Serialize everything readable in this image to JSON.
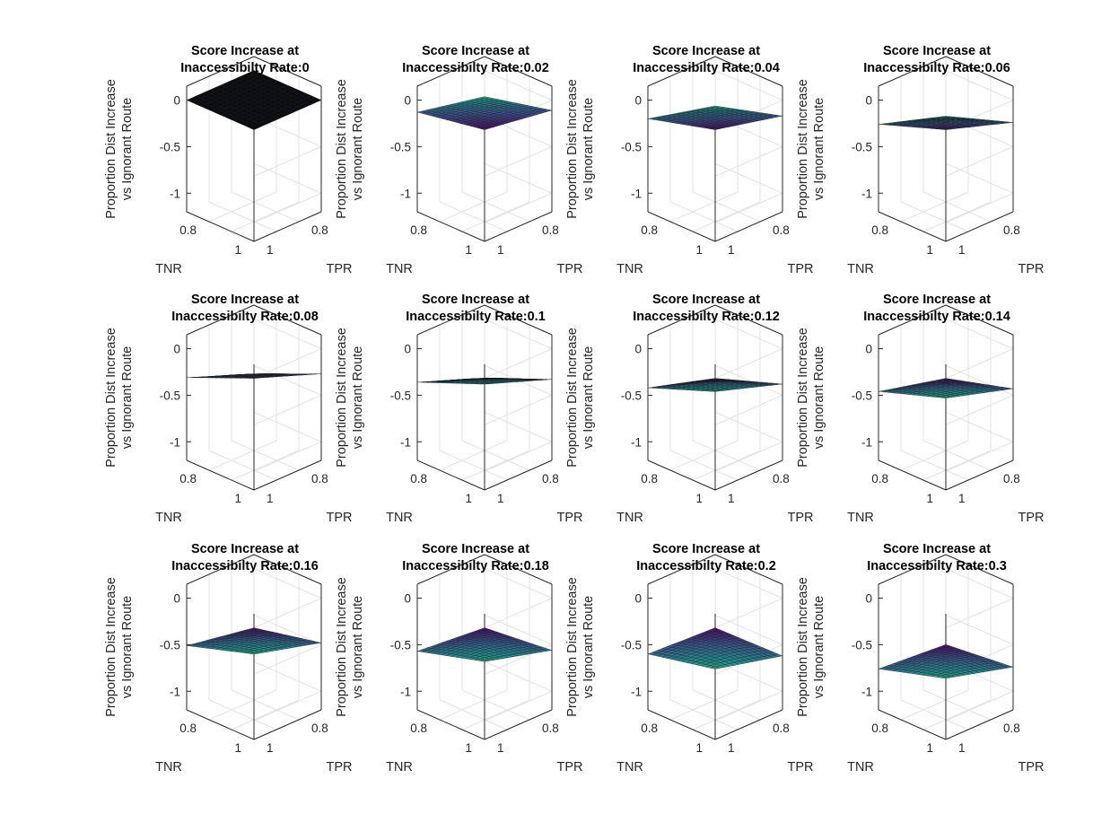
{
  "chart_data": {
    "type": "surface",
    "layout": "3x4 grid of 3D surface subplots",
    "xlabel": "TPR",
    "ylabel": "TNR",
    "zlabel_lines": [
      "Proportion Dist Increase",
      "vs Ignorant Route"
    ],
    "title_line1": "Score Increase at",
    "title_prefix": "Inaccessibilty Rate:",
    "xlim": [
      0.7,
      1
    ],
    "ylim": [
      0.7,
      1
    ],
    "zlim": [
      -1.2,
      0.15
    ],
    "xticks": [
      "0.8",
      "1"
    ],
    "yticks": [
      "0.8",
      "1"
    ],
    "zticks": [
      "0",
      "-0.5",
      "-1"
    ],
    "colormap": [
      "#440154",
      "#3b528b",
      "#21908d",
      "#5dc963"
    ],
    "grid": true,
    "panels": [
      {
        "rate": "0",
        "z_tnr1_tpr1": 0.0,
        "z_tnr07_tpr1": 0.0,
        "z_tnr1_tpr07": 0.0,
        "z_tnr07_tpr07": 0.0
      },
      {
        "rate": "0.02",
        "z_tnr1_tpr1": 0.0,
        "z_tnr07_tpr1": -0.13,
        "z_tnr1_tpr07": -0.11,
        "z_tnr07_tpr07": -0.28
      },
      {
        "rate": "0.04",
        "z_tnr1_tpr1": 0.0,
        "z_tnr07_tpr1": -0.2,
        "z_tnr1_tpr07": -0.17,
        "z_tnr07_tpr07": -0.38
      },
      {
        "rate": "0.06",
        "z_tnr1_tpr1": 0.0,
        "z_tnr07_tpr1": -0.26,
        "z_tnr1_tpr07": -0.24,
        "z_tnr07_tpr07": -0.49
      },
      {
        "rate": "0.08",
        "z_tnr1_tpr1": 0.0,
        "z_tnr07_tpr1": -0.31,
        "z_tnr1_tpr07": -0.27,
        "z_tnr07_tpr07": -0.6
      },
      {
        "rate": "0.1",
        "z_tnr1_tpr1": 0.0,
        "z_tnr07_tpr1": -0.36,
        "z_tnr1_tpr07": -0.33,
        "z_tnr07_tpr07": -0.7
      },
      {
        "rate": "0.12",
        "z_tnr1_tpr1": 0.0,
        "z_tnr07_tpr1": -0.42,
        "z_tnr1_tpr07": -0.38,
        "z_tnr07_tpr07": -0.78
      },
      {
        "rate": "0.14",
        "z_tnr1_tpr1": 0.0,
        "z_tnr07_tpr1": -0.46,
        "z_tnr1_tpr07": -0.43,
        "z_tnr07_tpr07": -0.85
      },
      {
        "rate": "0.16",
        "z_tnr1_tpr1": 0.0,
        "z_tnr07_tpr1": -0.51,
        "z_tnr1_tpr07": -0.48,
        "z_tnr07_tpr07": -0.92
      },
      {
        "rate": "0.18",
        "z_tnr1_tpr1": 0.0,
        "z_tnr07_tpr1": -0.57,
        "z_tnr1_tpr07": -0.56,
        "z_tnr07_tpr07": -1.0
      },
      {
        "rate": "0.2",
        "z_tnr1_tpr1": 0.0,
        "z_tnr07_tpr1": -0.6,
        "z_tnr1_tpr07": -0.62,
        "z_tnr07_tpr07": -1.08
      },
      {
        "rate": "0.3",
        "z_tnr1_tpr1": -0.18,
        "z_tnr07_tpr1": -0.76,
        "z_tnr1_tpr07": -0.74,
        "z_tnr07_tpr07": -1.18
      }
    ]
  }
}
